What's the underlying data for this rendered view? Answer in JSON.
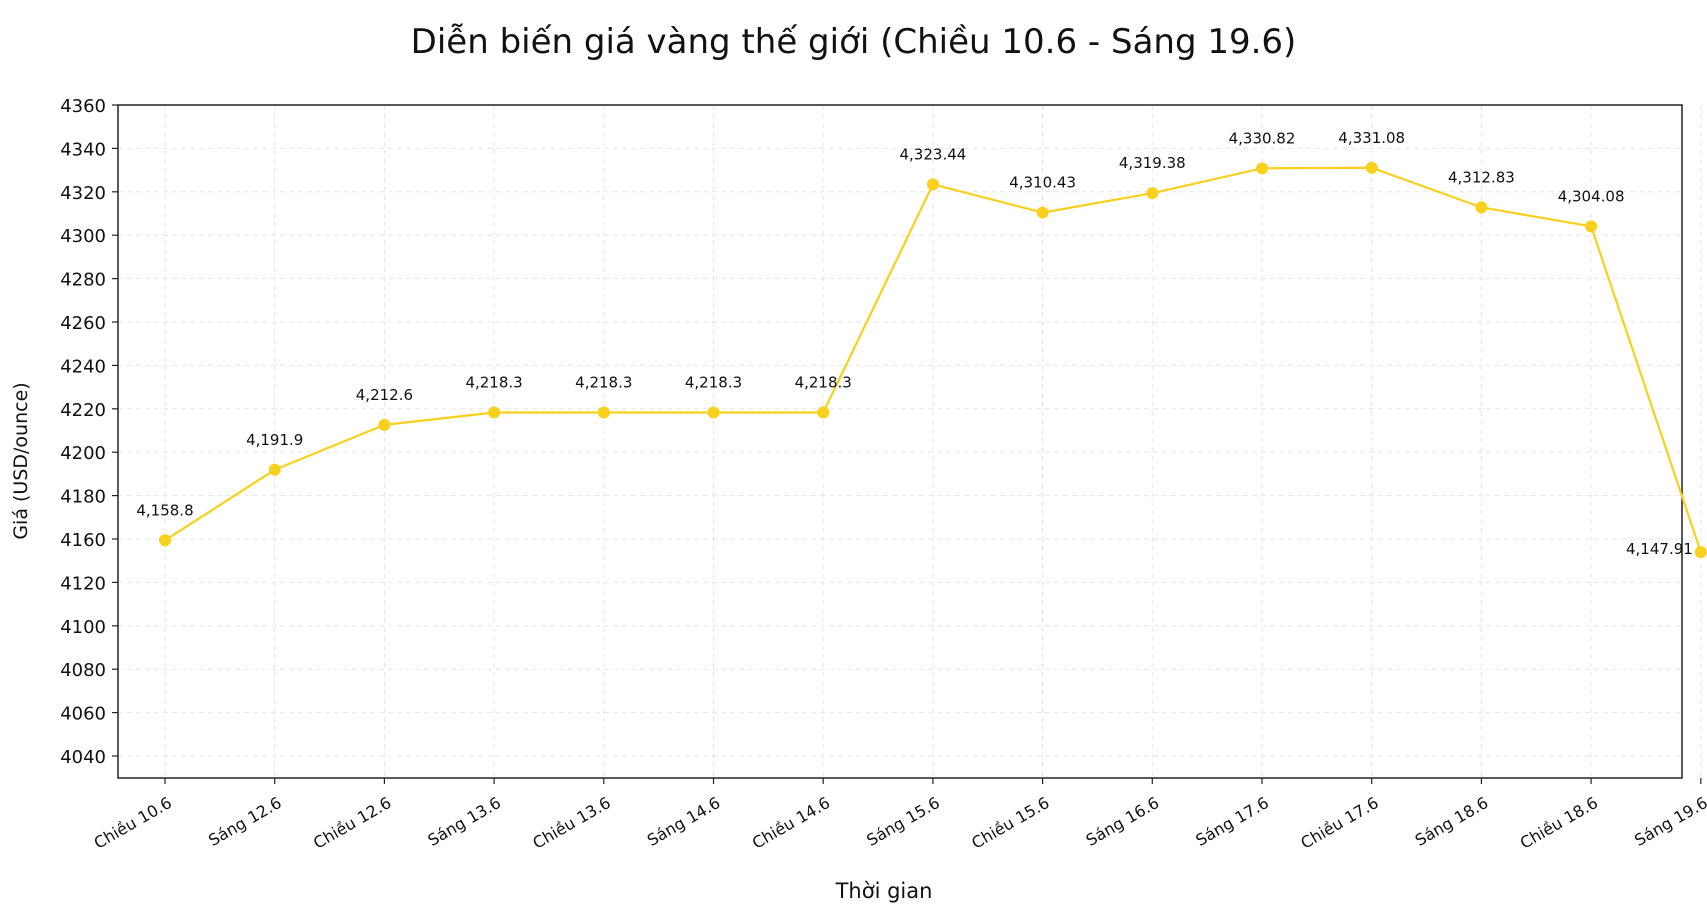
{
  "colors": {
    "series": "#F9D01C",
    "grid": "#e6e6e6",
    "axis": "#222222",
    "background": "#ffffff"
  },
  "chart_data": {
    "type": "line",
    "title": "Diễn biến giá vàng thế giới (Chiều 10.6 - Sáng 19.6)",
    "xlabel": "Thời gian",
    "ylabel": "Giá (USD/ounce)",
    "categories": [
      "Chiều 10.6",
      "Sáng 12.6",
      "Chiều 12.6",
      "Sáng 13.6",
      "Chiều 13.6",
      "Sáng 14.6",
      "Chiều 14.6",
      "Sáng 15.6",
      "Chiều 15.6",
      "Sáng 16.6",
      "Sáng 17.6",
      "Chiều 17.6",
      "Sáng 18.6",
      "Chiều 18.6",
      "Sáng 19.6"
    ],
    "values": [
      4158.8,
      4191.9,
      4212.6,
      4218.3,
      4218.3,
      4218.3,
      4218.3,
      4323.44,
      4310.43,
      4319.38,
      4330.82,
      4331.08,
      4312.83,
      4304.08,
      4147.91
    ],
    "data_labels": [
      "4,158.8",
      "4,191.9",
      "4,212.6",
      "4,218.3",
      "4,218.3",
      "4,218.3",
      "4,218.3",
      "4,323.44",
      "4,310.43",
      "4,319.38",
      "4,330.82",
      "4,331.08",
      "4,312.83",
      "4,304.08",
      "4,147.91"
    ],
    "yticks": [
      4040,
      4060,
      4080,
      4100,
      4120,
      4160,
      4180,
      4200,
      4220,
      4240,
      4260,
      4280,
      4300,
      4320,
      4340,
      4360
    ],
    "ylim": [
      4040,
      4360
    ],
    "grid": true,
    "grid_style": "dashed",
    "legend": "none"
  }
}
